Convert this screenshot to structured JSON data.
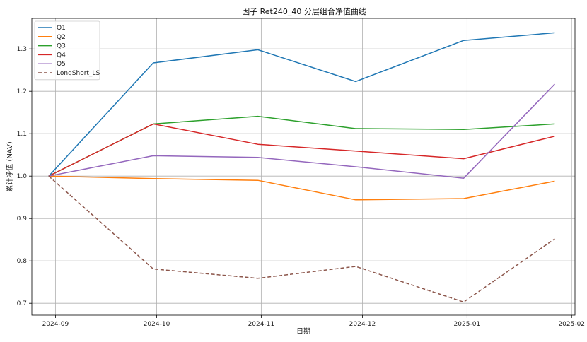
{
  "chart_data": {
    "type": "line",
    "title": "因子 Ret240_40 分层组合净值曲线",
    "xlabel": "日期",
    "ylabel": "累计净值 (NAV)",
    "x": [
      "2024-08-30",
      "2024-09-30",
      "2024-10-31",
      "2024-11-29",
      "2024-12-31",
      "2025-01-27"
    ],
    "x_ticks": [
      "2024-09",
      "2024-10",
      "2024-11",
      "2024-12",
      "2025-01",
      "2025-02"
    ],
    "y_ticks": [
      0.7,
      0.8,
      0.9,
      1.0,
      1.1,
      1.2,
      1.3
    ],
    "ylim": [
      0.672,
      1.372
    ],
    "xlim": [
      "2024-08-25",
      "2025-02-02"
    ],
    "grid": true,
    "legend_position": "top-left",
    "series": [
      {
        "name": "Q1",
        "color": "#1f77b4",
        "style": "solid",
        "values": [
          1.0,
          1.267,
          1.298,
          1.223,
          1.32,
          1.338
        ]
      },
      {
        "name": "Q2",
        "color": "#ff7f0e",
        "style": "solid",
        "values": [
          1.0,
          0.994,
          0.99,
          0.944,
          0.947,
          0.988
        ]
      },
      {
        "name": "Q3",
        "color": "#2ca02c",
        "style": "solid",
        "values": [
          1.0,
          1.123,
          1.141,
          1.112,
          1.11,
          1.123
        ]
      },
      {
        "name": "Q4",
        "color": "#d62728",
        "style": "solid",
        "values": [
          1.0,
          1.123,
          1.075,
          1.059,
          1.041,
          1.094
        ]
      },
      {
        "name": "Q5",
        "color": "#9467bd",
        "style": "solid",
        "values": [
          1.0,
          1.048,
          1.044,
          1.022,
          0.995,
          1.217
        ]
      },
      {
        "name": "LongShort_LS",
        "color": "#8c564b",
        "style": "dashed",
        "values": [
          1.0,
          0.781,
          0.759,
          0.787,
          0.703,
          0.852
        ]
      }
    ]
  }
}
